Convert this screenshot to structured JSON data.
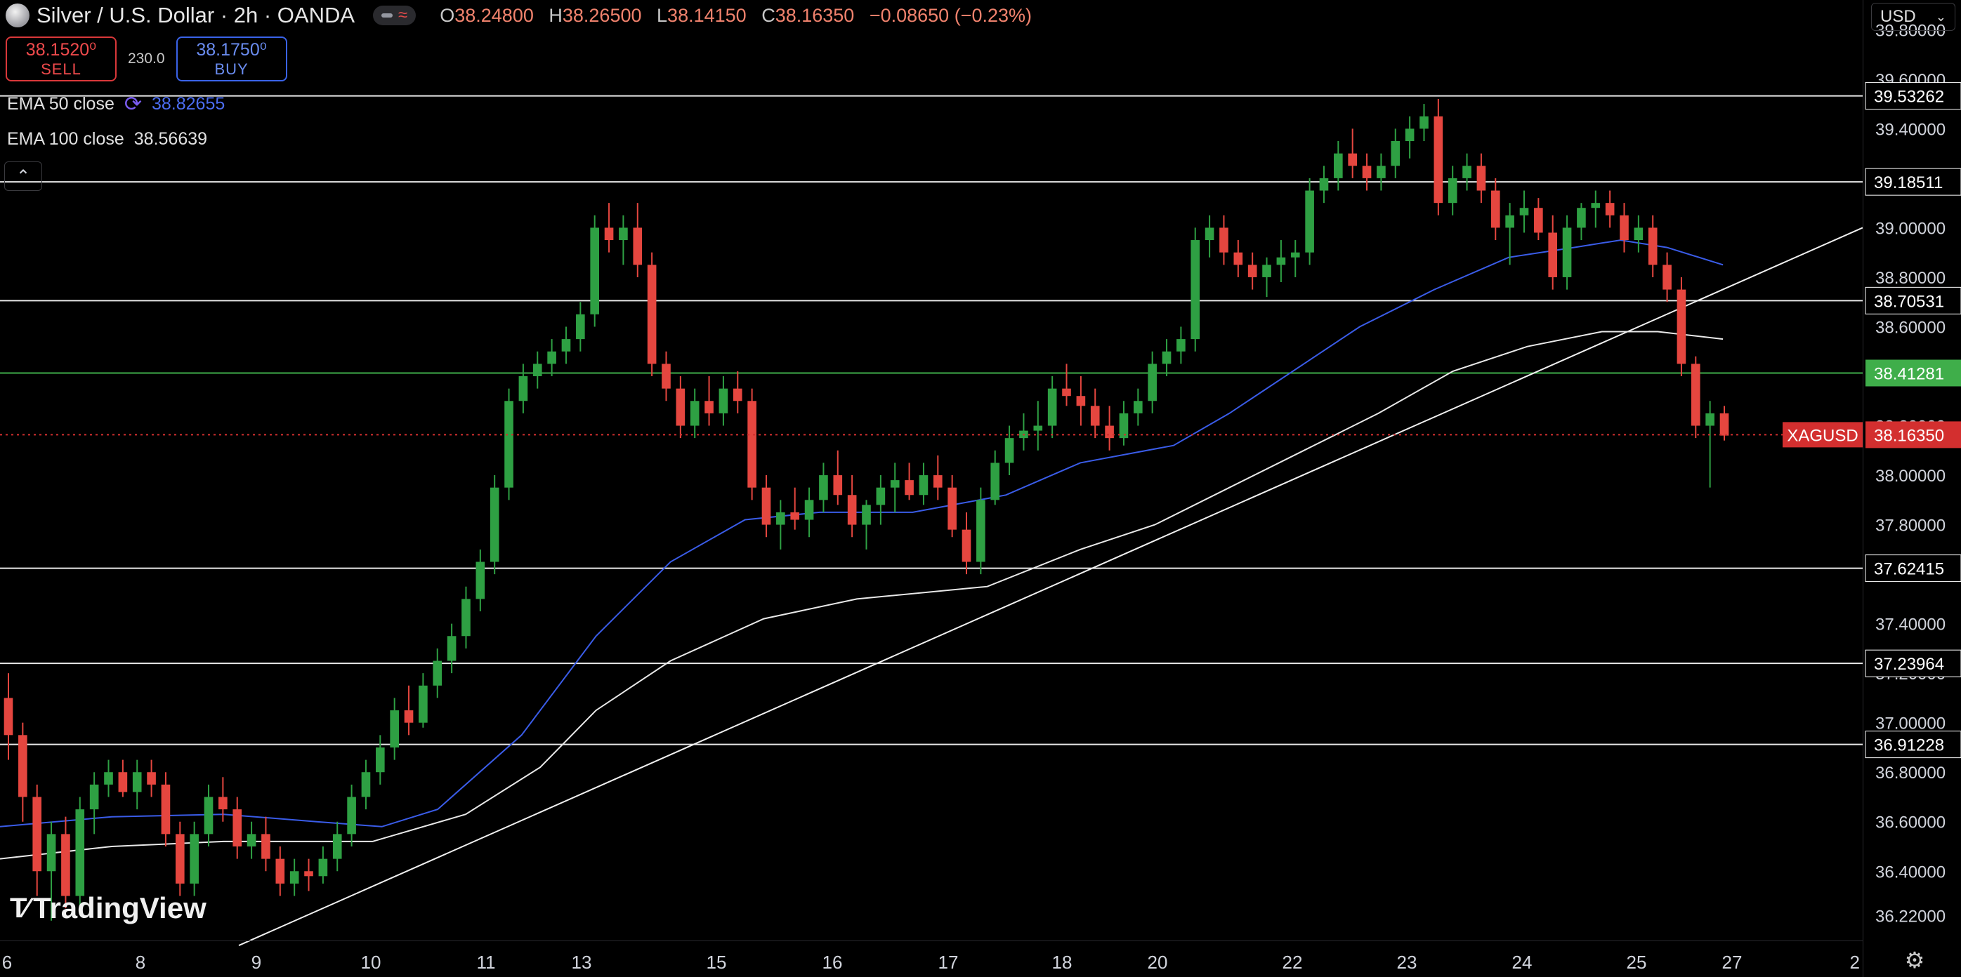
{
  "header": {
    "title": "Silver / U.S. Dollar · 2h · OANDA",
    "ohlc": {
      "open_label": "O",
      "open": "38.24800",
      "high_label": "H",
      "high": "38.26500",
      "low_label": "L",
      "low": "38.14150",
      "close_label": "C",
      "close": "38.16350",
      "change": "−0.08650 (−0.23%)"
    }
  },
  "trade": {
    "sell_price": "38.1520⁰",
    "sell_label": "SELL",
    "spread": "230.0",
    "buy_price": "38.1750⁰",
    "buy_label": "BUY"
  },
  "indicators": [
    {
      "label": "EMA 50 close",
      "value": "38.82655",
      "color": "#3a5ce8"
    },
    {
      "label": "EMA 100 close",
      "value": "38.56639",
      "color": "#e8e8e8"
    }
  ],
  "currency": "USD",
  "brand": "TradingView",
  "colors": {
    "up": "#2ea043",
    "down": "#e5463f",
    "ema50": "#3a5ce8",
    "ema100": "#e8e8e8",
    "level_line": "#e8e8e8",
    "green_level": "#3fae4a",
    "last_price": "#d32f2f"
  },
  "chart_data": {
    "type": "candlestick",
    "symbol": "XAGUSD",
    "last_price": "38.16350",
    "ylim": [
      36.12,
      39.92
    ],
    "y_ticks": [
      "39.80000",
      "39.60000",
      "39.40000",
      "39.00000",
      "38.80000",
      "38.60000",
      "38.20000",
      "38.00000",
      "37.80000",
      "37.40000",
      "37.20000",
      "37.00000",
      "36.80000",
      "36.60000",
      "36.40000",
      "36.22000"
    ],
    "x_ticks": [
      "6",
      "8",
      "9",
      "10",
      "11",
      "13",
      "15",
      "16",
      "17",
      "18",
      "20",
      "22",
      "23",
      "24",
      "25",
      "27",
      "2"
    ],
    "horizontal_levels": [
      {
        "value": "39.53262",
        "style": "white"
      },
      {
        "value": "39.18511",
        "style": "white"
      },
      {
        "value": "38.70531",
        "style": "white"
      },
      {
        "value": "38.41281",
        "style": "green"
      },
      {
        "value": "37.62415",
        "style": "white"
      },
      {
        "value": "37.23964",
        "style": "white"
      },
      {
        "value": "36.91228",
        "style": "white"
      }
    ],
    "trendline": {
      "from": [
        0,
        36.1
      ],
      "to": [
        1.0,
        39.0
      ]
    },
    "candles": [
      [
        37.1,
        37.2,
        36.85,
        36.95
      ],
      [
        36.95,
        37.0,
        36.6,
        36.7
      ],
      [
        36.7,
        36.75,
        36.3,
        36.4
      ],
      [
        36.4,
        36.6,
        36.2,
        36.55
      ],
      [
        36.55,
        36.62,
        36.25,
        36.3
      ],
      [
        36.3,
        36.7,
        36.25,
        36.65
      ],
      [
        36.65,
        36.8,
        36.55,
        36.75
      ],
      [
        36.75,
        36.85,
        36.7,
        36.8
      ],
      [
        36.8,
        36.85,
        36.7,
        36.72
      ],
      [
        36.72,
        36.85,
        36.65,
        36.8
      ],
      [
        36.8,
        36.85,
        36.7,
        36.75
      ],
      [
        36.75,
        36.8,
        36.5,
        36.55
      ],
      [
        36.55,
        36.6,
        36.3,
        36.35
      ],
      [
        36.35,
        36.6,
        36.3,
        36.55
      ],
      [
        36.55,
        36.75,
        36.5,
        36.7
      ],
      [
        36.7,
        36.78,
        36.6,
        36.65
      ],
      [
        36.65,
        36.7,
        36.45,
        36.5
      ],
      [
        36.5,
        36.6,
        36.45,
        36.55
      ],
      [
        36.55,
        36.62,
        36.4,
        36.45
      ],
      [
        36.45,
        36.5,
        36.3,
        36.35
      ],
      [
        36.35,
        36.45,
        36.3,
        36.4
      ],
      [
        36.4,
        36.45,
        36.32,
        36.38
      ],
      [
        36.38,
        36.5,
        36.35,
        36.45
      ],
      [
        36.45,
        36.6,
        36.4,
        36.55
      ],
      [
        36.55,
        36.75,
        36.5,
        36.7
      ],
      [
        36.7,
        36.85,
        36.65,
        36.8
      ],
      [
        36.8,
        36.95,
        36.75,
        36.9
      ],
      [
        36.9,
        37.1,
        36.85,
        37.05
      ],
      [
        37.05,
        37.15,
        36.95,
        37.0
      ],
      [
        37.0,
        37.2,
        36.98,
        37.15
      ],
      [
        37.15,
        37.3,
        37.1,
        37.25
      ],
      [
        37.25,
        37.4,
        37.2,
        37.35
      ],
      [
        37.35,
        37.55,
        37.3,
        37.5
      ],
      [
        37.5,
        37.7,
        37.45,
        37.65
      ],
      [
        37.65,
        38.0,
        37.6,
        37.95
      ],
      [
        37.95,
        38.35,
        37.9,
        38.3
      ],
      [
        38.3,
        38.45,
        38.25,
        38.4
      ],
      [
        38.4,
        38.5,
        38.35,
        38.45
      ],
      [
        38.45,
        38.55,
        38.4,
        38.5
      ],
      [
        38.5,
        38.6,
        38.45,
        38.55
      ],
      [
        38.55,
        38.7,
        38.5,
        38.65
      ],
      [
        38.65,
        39.05,
        38.6,
        39.0
      ],
      [
        39.0,
        39.1,
        38.9,
        38.95
      ],
      [
        38.95,
        39.05,
        38.85,
        39.0
      ],
      [
        39.0,
        39.1,
        38.8,
        38.85
      ],
      [
        38.85,
        38.9,
        38.4,
        38.45
      ],
      [
        38.45,
        38.5,
        38.3,
        38.35
      ],
      [
        38.35,
        38.4,
        38.15,
        38.2
      ],
      [
        38.2,
        38.35,
        38.15,
        38.3
      ],
      [
        38.3,
        38.4,
        38.2,
        38.25
      ],
      [
        38.25,
        38.4,
        38.2,
        38.35
      ],
      [
        38.35,
        38.42,
        38.25,
        38.3
      ],
      [
        38.3,
        38.35,
        37.9,
        37.95
      ],
      [
        37.95,
        38.0,
        37.75,
        37.8
      ],
      [
        37.8,
        37.9,
        37.7,
        37.85
      ],
      [
        37.85,
        37.95,
        37.78,
        37.82
      ],
      [
        37.82,
        37.95,
        37.75,
        37.9
      ],
      [
        37.9,
        38.05,
        37.85,
        38.0
      ],
      [
        38.0,
        38.1,
        37.88,
        37.92
      ],
      [
        37.92,
        38.0,
        37.75,
        37.8
      ],
      [
        37.8,
        37.9,
        37.7,
        37.88
      ],
      [
        37.88,
        38.0,
        37.8,
        37.95
      ],
      [
        37.95,
        38.05,
        37.85,
        37.98
      ],
      [
        37.98,
        38.05,
        37.9,
        37.92
      ],
      [
        37.92,
        38.05,
        37.88,
        38.0
      ],
      [
        38.0,
        38.08,
        37.9,
        37.95
      ],
      [
        37.95,
        38.0,
        37.75,
        37.78
      ],
      [
        37.78,
        37.85,
        37.6,
        37.65
      ],
      [
        37.65,
        37.95,
        37.6,
        37.9
      ],
      [
        37.9,
        38.1,
        37.88,
        38.05
      ],
      [
        38.05,
        38.2,
        38.0,
        38.15
      ],
      [
        38.15,
        38.25,
        38.1,
        38.18
      ],
      [
        38.18,
        38.3,
        38.1,
        38.2
      ],
      [
        38.2,
        38.4,
        38.15,
        38.35
      ],
      [
        38.35,
        38.45,
        38.28,
        38.32
      ],
      [
        38.32,
        38.4,
        38.2,
        38.28
      ],
      [
        38.28,
        38.35,
        38.15,
        38.2
      ],
      [
        38.2,
        38.28,
        38.1,
        38.15
      ],
      [
        38.15,
        38.3,
        38.12,
        38.25
      ],
      [
        38.25,
        38.35,
        38.2,
        38.3
      ],
      [
        38.3,
        38.5,
        38.25,
        38.45
      ],
      [
        38.45,
        38.55,
        38.4,
        38.5
      ],
      [
        38.5,
        38.6,
        38.45,
        38.55
      ],
      [
        38.55,
        39.0,
        38.5,
        38.95
      ],
      [
        38.95,
        39.05,
        38.88,
        39.0
      ],
      [
        39.0,
        39.05,
        38.85,
        38.9
      ],
      [
        38.9,
        38.95,
        38.8,
        38.85
      ],
      [
        38.85,
        38.9,
        38.75,
        38.8
      ],
      [
        38.8,
        38.88,
        38.72,
        38.85
      ],
      [
        38.85,
        38.95,
        38.78,
        38.88
      ],
      [
        38.88,
        38.95,
        38.8,
        38.9
      ],
      [
        38.9,
        39.2,
        38.85,
        39.15
      ],
      [
        39.15,
        39.25,
        39.1,
        39.2
      ],
      [
        39.2,
        39.35,
        39.15,
        39.3
      ],
      [
        39.3,
        39.4,
        39.2,
        39.25
      ],
      [
        39.25,
        39.3,
        39.15,
        39.2
      ],
      [
        39.2,
        39.3,
        39.15,
        39.25
      ],
      [
        39.25,
        39.4,
        39.2,
        39.35
      ],
      [
        39.35,
        39.45,
        39.28,
        39.4
      ],
      [
        39.4,
        39.5,
        39.35,
        39.45
      ],
      [
        39.45,
        39.52,
        39.05,
        39.1
      ],
      [
        39.1,
        39.25,
        39.05,
        39.2
      ],
      [
        39.2,
        39.3,
        39.15,
        39.25
      ],
      [
        39.25,
        39.3,
        39.1,
        39.15
      ],
      [
        39.15,
        39.2,
        38.95,
        39.0
      ],
      [
        39.0,
        39.1,
        38.85,
        39.05
      ],
      [
        39.05,
        39.15,
        38.98,
        39.08
      ],
      [
        39.08,
        39.12,
        38.95,
        38.98
      ],
      [
        38.98,
        39.05,
        38.75,
        38.8
      ],
      [
        38.8,
        39.05,
        38.75,
        39.0
      ],
      [
        39.0,
        39.1,
        38.95,
        39.08
      ],
      [
        39.08,
        39.15,
        39.0,
        39.1
      ],
      [
        39.1,
        39.15,
        39.0,
        39.05
      ],
      [
        39.05,
        39.1,
        38.9,
        38.95
      ],
      [
        38.95,
        39.05,
        38.9,
        39.0
      ],
      [
        39.0,
        39.05,
        38.8,
        38.85
      ],
      [
        38.85,
        38.9,
        38.7,
        38.75
      ],
      [
        38.75,
        38.8,
        38.4,
        38.45
      ],
      [
        38.45,
        38.48,
        38.15,
        38.2
      ],
      [
        38.2,
        38.3,
        37.95,
        38.25
      ],
      [
        38.25,
        38.28,
        38.14,
        38.16
      ]
    ],
    "ema50": [
      [
        0,
        36.58
      ],
      [
        0.06,
        36.62
      ],
      [
        0.12,
        36.63
      ],
      [
        0.17,
        36.6
      ],
      [
        0.205,
        36.58
      ],
      [
        0.235,
        36.65
      ],
      [
        0.28,
        36.95
      ],
      [
        0.32,
        37.35
      ],
      [
        0.36,
        37.65
      ],
      [
        0.4,
        37.82
      ],
      [
        0.44,
        37.85
      ],
      [
        0.49,
        37.85
      ],
      [
        0.54,
        37.92
      ],
      [
        0.58,
        38.05
      ],
      [
        0.63,
        38.12
      ],
      [
        0.66,
        38.25
      ],
      [
        0.7,
        38.45
      ],
      [
        0.73,
        38.6
      ],
      [
        0.77,
        38.75
      ],
      [
        0.81,
        38.88
      ],
      [
        0.845,
        38.92
      ],
      [
        0.87,
        38.95
      ],
      [
        0.895,
        38.92
      ],
      [
        0.925,
        38.85
      ]
    ],
    "ema100": [
      [
        0,
        36.45
      ],
      [
        0.06,
        36.5
      ],
      [
        0.12,
        36.52
      ],
      [
        0.17,
        36.52
      ],
      [
        0.2,
        36.52
      ],
      [
        0.25,
        36.63
      ],
      [
        0.29,
        36.82
      ],
      [
        0.32,
        37.05
      ],
      [
        0.36,
        37.25
      ],
      [
        0.41,
        37.42
      ],
      [
        0.46,
        37.5
      ],
      [
        0.53,
        37.55
      ],
      [
        0.58,
        37.7
      ],
      [
        0.62,
        37.8
      ],
      [
        0.66,
        37.95
      ],
      [
        0.7,
        38.1
      ],
      [
        0.74,
        38.25
      ],
      [
        0.78,
        38.42
      ],
      [
        0.82,
        38.52
      ],
      [
        0.86,
        38.58
      ],
      [
        0.89,
        38.58
      ],
      [
        0.925,
        38.55
      ]
    ]
  }
}
